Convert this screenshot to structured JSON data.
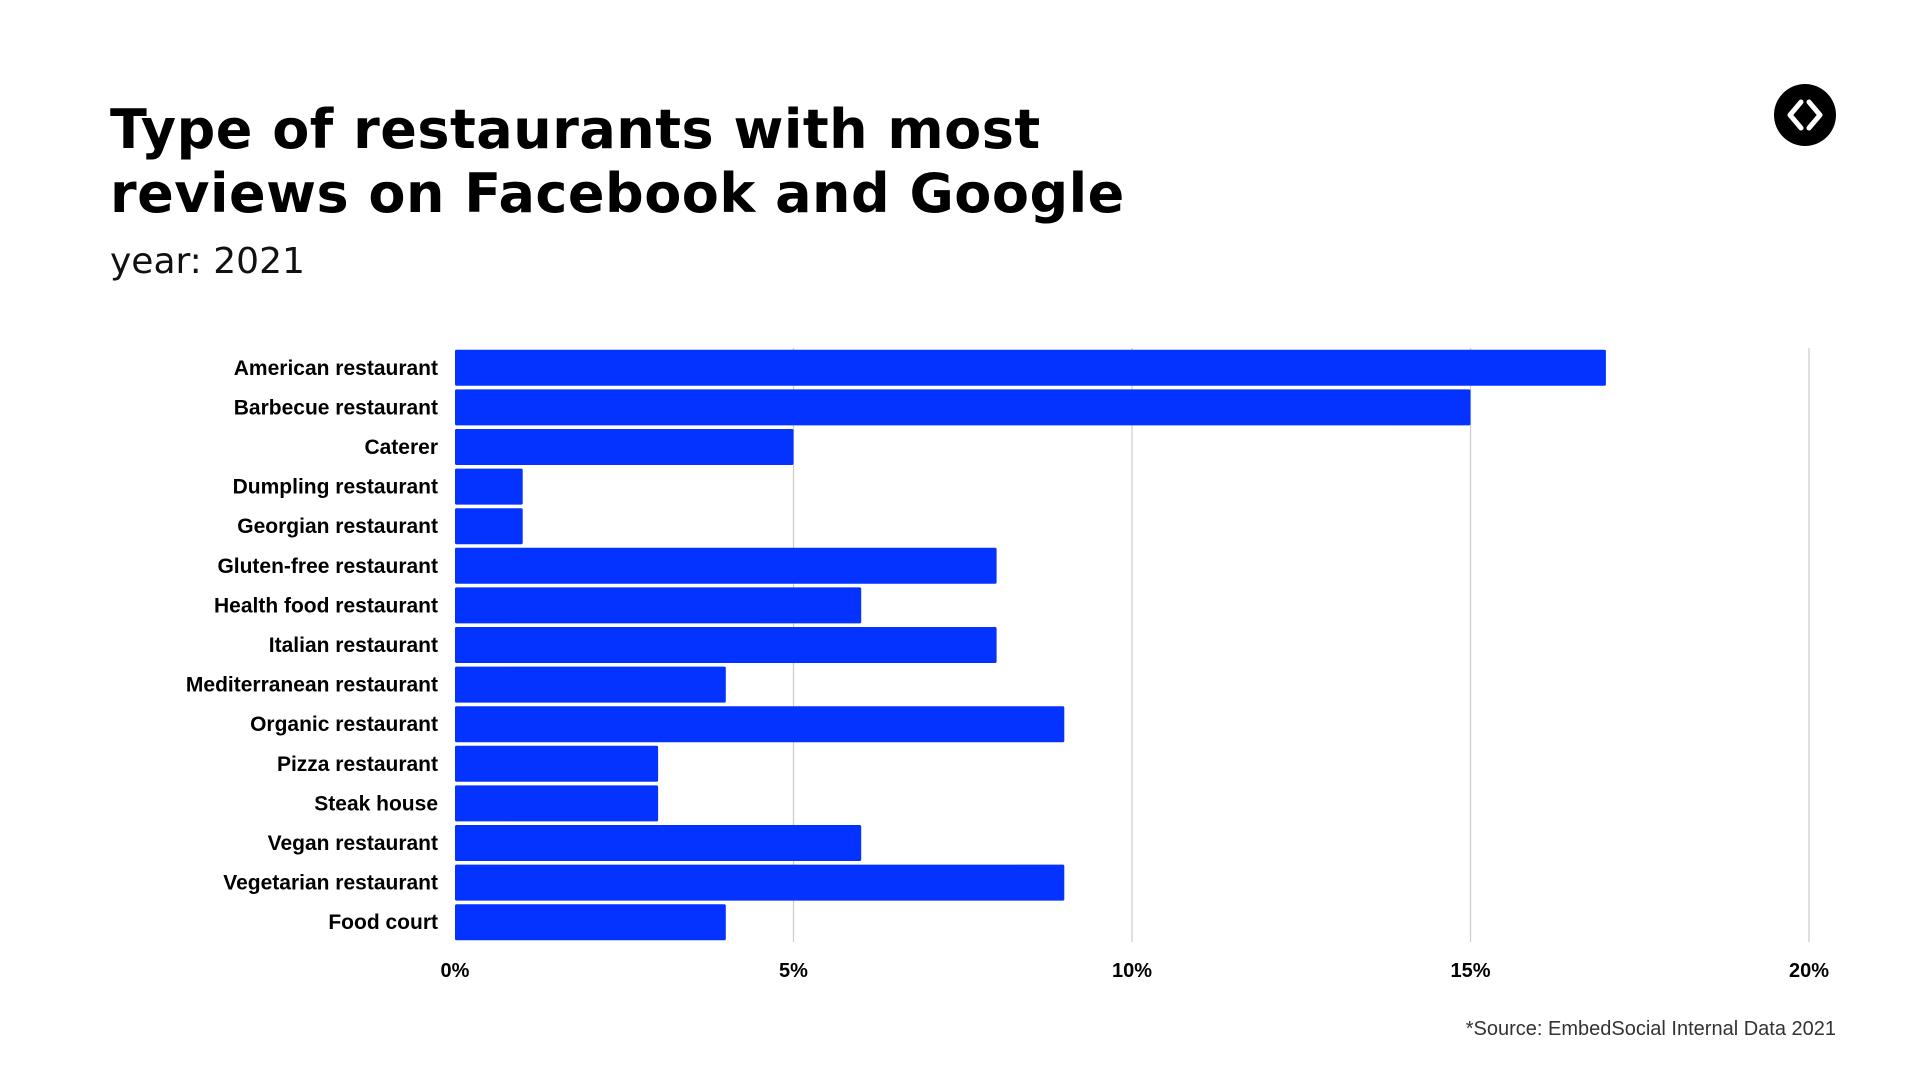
{
  "header": {
    "title": "Type of restaurants with most reviews on Facebook and Google",
    "subtitle": "year: 2021"
  },
  "logo": {
    "icon": "code-brackets-icon"
  },
  "footer": {
    "source": "*Source: EmbedSocial Internal Data 2021"
  },
  "colors": {
    "bar": "#0433ff",
    "grid": "#cccccc",
    "text": "#000000"
  },
  "chart_data": {
    "type": "bar",
    "orientation": "horizontal",
    "categories": [
      "American restaurant",
      "Barbecue restaurant",
      "Caterer",
      "Dumpling restaurant",
      "Georgian restaurant",
      "Gluten-free restaurant",
      "Health food restaurant",
      "Italian restaurant",
      "Mediterranean restaurant",
      "Organic restaurant",
      "Pizza restaurant",
      "Steak house",
      "Vegan restaurant",
      "Vegetarian restaurant",
      "Food court"
    ],
    "values": [
      17,
      15,
      5,
      1,
      1,
      8,
      6,
      8,
      4,
      9,
      3,
      3,
      6,
      9,
      4
    ],
    "xlim": [
      0,
      20
    ],
    "xticks": [
      0,
      5,
      10,
      15,
      20
    ],
    "xtick_labels": [
      "0%",
      "5%",
      "10%",
      "15%",
      "20%"
    ],
    "grid": true,
    "legend": "none"
  }
}
